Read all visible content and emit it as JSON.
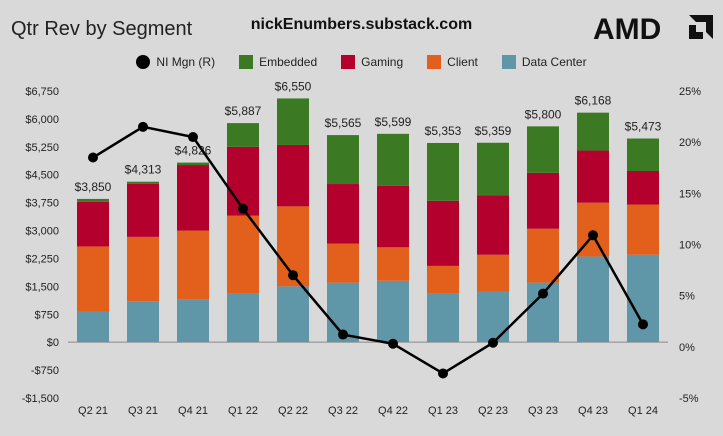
{
  "header": {
    "title": "Qtr Rev by Segment",
    "source": "nickEnumbers.substack.com",
    "logo_text": "AMD"
  },
  "colors": {
    "data_center": "#5f97a8",
    "client": "#e3601c",
    "gaming": "#b3002d",
    "embedded": "#3b7a23",
    "line": "#000000",
    "background": "#d9d9d9"
  },
  "chart_data": {
    "type": "bar",
    "stacked": true,
    "secondary_line": true,
    "title": "Qtr Rev by Segment",
    "categories": [
      "Q2 21",
      "Q3 21",
      "Q4 21",
      "Q1 22",
      "Q2 22",
      "Q3 22",
      "Q4 22",
      "Q1 23",
      "Q2 23",
      "Q3 23",
      "Q4 23",
      "Q1 24"
    ],
    "totals": [
      "$3,850",
      "$4,313",
      "$4,826",
      "$5,887",
      "$6,550",
      "$5,565",
      "$5,599",
      "$5,353",
      "$5,359",
      "$5,800",
      "$6,168",
      "$5,473"
    ],
    "totals_values": [
      3850,
      4313,
      4826,
      5887,
      6550,
      5565,
      5599,
      5353,
      5359,
      5800,
      6168,
      5473
    ],
    "series": [
      {
        "name": "Data Center",
        "values": [
          813,
          1100,
          1150,
          1300,
          1500,
          1600,
          1650,
          1300,
          1350,
          1600,
          2300,
          2350
        ],
        "color": "#5f97a8"
      },
      {
        "name": "Client",
        "values": [
          1760,
          1730,
          1850,
          2100,
          2150,
          1050,
          900,
          750,
          1000,
          1450,
          1450,
          1350
        ]
      },
      {
        "name": "Gaming",
        "values": [
          1200,
          1430,
          1760,
          1850,
          1650,
          1600,
          1650,
          1750,
          1600,
          1500,
          1400,
          900
        ]
      },
      {
        "name": "Embedded",
        "values": [
          77,
          53,
          66,
          637,
          1250,
          1315,
          1399,
          1553,
          1409,
          1250,
          1018,
          873
        ]
      }
    ],
    "line_series": {
      "name": "NI Mgn (R)",
      "values": [
        18.5,
        21.5,
        20.5,
        13.5,
        7.0,
        1.2,
        0.3,
        -2.6,
        0.4,
        5.2,
        10.9,
        2.2
      ]
    },
    "y_left": {
      "ylim": [
        -1500,
        6750
      ],
      "ticks": [
        "-$1,500",
        "-$750",
        "$0",
        "$750",
        "$1,500",
        "$2,250",
        "$3,000",
        "$3,750",
        "$4,500",
        "$5,250",
        "$6,000",
        "$6,750"
      ],
      "tick_values": [
        -1500,
        -750,
        0,
        750,
        1500,
        2250,
        3000,
        3750,
        4500,
        5250,
        6000,
        6750
      ]
    },
    "y_right": {
      "ylim": [
        -5,
        25
      ],
      "ticks": [
        "-5%",
        "0%",
        "5%",
        "10%",
        "15%",
        "20%",
        "25%"
      ],
      "tick_values": [
        -5,
        0,
        5,
        10,
        15,
        20,
        25
      ]
    },
    "legend": {
      "position": "top",
      "entries": [
        "NI Mgn (R)",
        "Embedded",
        "Gaming",
        "Client",
        "Data Center"
      ]
    },
    "grid": false
  }
}
